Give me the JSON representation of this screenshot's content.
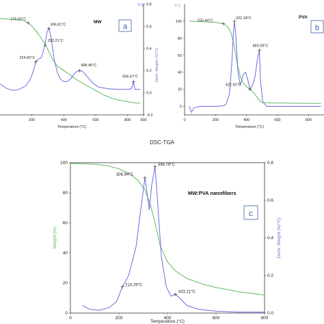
{
  "figure": {
    "middle_title": "DSC-TGA"
  },
  "colors": {
    "weight": "#5cb85c",
    "deriv": "#6a6ae0",
    "axis": "#333333",
    "box": "#3a5fa8"
  },
  "chart_data": [
    {
      "id": "a",
      "type": "line",
      "panel_label": "a",
      "title": "MW",
      "xlabel": "Temperature (°C)",
      "ylabel_right": "Deriv. Weight (%/°C)",
      "right_axis_tag": "Y-2",
      "xlim": [
        0,
        900
      ],
      "ylim_left": [
        0,
        100
      ],
      "ylim_right": [
        -0.2,
        0.8
      ],
      "x_ticks": [
        200,
        400,
        600,
        800,
        900
      ],
      "right_ticks": [
        0.8,
        0.6,
        0.4,
        0.2,
        0.0,
        -0.2
      ],
      "series": [
        {
          "role": "weight",
          "points": [
            [
              0,
              87
            ],
            [
              50,
              86.5
            ],
            [
              100,
              86
            ],
            [
              150,
              85
            ],
            [
              176.65,
              83
            ],
            [
              200,
              80
            ],
            [
              224.82,
              76
            ],
            [
              250,
              71
            ],
            [
              282.21,
              64
            ],
            [
              306.81,
              57
            ],
            [
              330,
              50
            ],
            [
              360,
              44
            ],
            [
              400,
              40
            ],
            [
              450,
              35
            ],
            [
              498.46,
              30
            ],
            [
              550,
              26
            ],
            [
              600,
              22
            ],
            [
              650,
              18
            ],
            [
              700,
              15
            ],
            [
              750,
              13
            ],
            [
              800,
              12
            ],
            [
              836.67,
              11
            ],
            [
              880,
              10.5
            ]
          ]
        },
        {
          "role": "deriv",
          "points": [
            [
              0,
              0.08
            ],
            [
              40,
              0.04
            ],
            [
              80,
              0.02
            ],
            [
              120,
              0.03
            ],
            [
              160,
              0.06
            ],
            [
              190,
              0.12
            ],
            [
              210,
              0.2
            ],
            [
              224.82,
              0.28
            ],
            [
              240,
              0.3
            ],
            [
              260,
              0.32
            ],
            [
              282.21,
              0.43
            ],
            [
              295,
              0.55
            ],
            [
              306.81,
              0.58
            ],
            [
              320,
              0.5
            ],
            [
              340,
              0.3
            ],
            [
              360,
              0.18
            ],
            [
              380,
              0.12
            ],
            [
              400,
              0.1
            ],
            [
              420,
              0.1
            ],
            [
              440,
              0.12
            ],
            [
              460,
              0.16
            ],
            [
              480,
              0.19
            ],
            [
              498.46,
              0.2
            ],
            [
              520,
              0.19
            ],
            [
              550,
              0.14
            ],
            [
              580,
              0.09
            ],
            [
              620,
              0.05
            ],
            [
              680,
              0.035
            ],
            [
              740,
              0.03
            ],
            [
              800,
              0.03
            ],
            [
              825,
              0.035
            ],
            [
              836.67,
              0.1
            ],
            [
              846,
              0.03
            ],
            [
              880,
              0.03
            ]
          ]
        }
      ],
      "annotations": [
        {
          "label": "176.65°C",
          "x": 176.65,
          "series": "weight"
        },
        {
          "label": "224.82°C",
          "x": 224.82,
          "series": "deriv"
        },
        {
          "label": "306.81°C",
          "x": 306.81,
          "series": "deriv"
        },
        {
          "label": "282.21°C",
          "x": 282.21,
          "series": "deriv"
        },
        {
          "label": "498.46°C",
          "x": 498.46,
          "series": "deriv"
        },
        {
          "label": "836.67°C",
          "x": 836.67,
          "series": "deriv"
        }
      ]
    },
    {
      "id": "b",
      "type": "line",
      "panel_label": "b",
      "title": "PVA",
      "xlabel": "Temperature (°C)",
      "left_axis_tag": "Y-1",
      "xlim": [
        0,
        900
      ],
      "ylim_left": [
        -10,
        120
      ],
      "x_ticks": [
        0,
        200,
        400,
        600,
        800
      ],
      "left_ticks": [
        100,
        80,
        60,
        40,
        20,
        0
      ],
      "series": [
        {
          "role": "weight",
          "points": [
            [
              30,
              100
            ],
            [
              100,
              99.5
            ],
            [
              200,
              98.5
            ],
            [
              250.44,
              97
            ],
            [
              280,
              93
            ],
            [
              300,
              86
            ],
            [
              322.18,
              70
            ],
            [
              340,
              50
            ],
            [
              360,
              35
            ],
            [
              380,
              27
            ],
            [
              400,
              23
            ],
            [
              422.62,
              20
            ],
            [
              450,
              15
            ],
            [
              483.09,
              7
            ],
            [
              500,
              4.5
            ],
            [
              550,
              4
            ],
            [
              650,
              3.8
            ],
            [
              800,
              3.5
            ],
            [
              880,
              3.5
            ]
          ]
        },
        {
          "role": "deriv",
          "points": [
            [
              30,
              0
            ],
            [
              45,
              -7
            ],
            [
              60,
              -2
            ],
            [
              100,
              0
            ],
            [
              200,
              0
            ],
            [
              250.44,
              0.5
            ],
            [
              270,
              3
            ],
            [
              290,
              15
            ],
            [
              305,
              50
            ],
            [
              315,
              85
            ],
            [
              322.18,
              100
            ],
            [
              330,
              85
            ],
            [
              345,
              40
            ],
            [
              360,
              25
            ],
            [
              380,
              38
            ],
            [
              395,
              40
            ],
            [
              410,
              30
            ],
            [
              422.62,
              20
            ],
            [
              440,
              25
            ],
            [
              455,
              35
            ],
            [
              470,
              55
            ],
            [
              483.09,
              66
            ],
            [
              490,
              30
            ],
            [
              505,
              5
            ],
            [
              530,
              0
            ],
            [
              650,
              0
            ],
            [
              880,
              0
            ]
          ]
        }
      ],
      "annotations": [
        {
          "label": "250.44°C",
          "x": 250.44,
          "series": "weight"
        },
        {
          "label": "322.18°C",
          "x": 322.18,
          "series": "deriv"
        },
        {
          "label": "422.62°C",
          "x": 422.62,
          "series": "deriv"
        },
        {
          "label": "483.09°C",
          "x": 483.09,
          "series": "deriv"
        }
      ]
    },
    {
      "id": "c",
      "type": "line",
      "panel_label": "c",
      "title": "MW:PVA nanofibers",
      "xlabel": "Temperature (°C)",
      "ylabel_left": "Weight (%)",
      "ylabel_right": "Deriv. Weight (%/°C)",
      "xlim": [
        0,
        800
      ],
      "ylim_left": [
        0,
        100
      ],
      "ylim_right": [
        0,
        0.8
      ],
      "x_ticks": [
        0,
        200,
        400,
        600,
        800
      ],
      "left_ticks": [
        100,
        80,
        60,
        40,
        20,
        0
      ],
      "right_ticks": [
        0.8,
        0.6,
        0.4,
        0.2,
        0.0
      ],
      "series": [
        {
          "role": "weight",
          "points": [
            [
              0,
              99.5
            ],
            [
              100,
              99
            ],
            [
              150,
              98
            ],
            [
              200,
              96
            ],
            [
              250,
              92
            ],
            [
              280,
              88
            ],
            [
              306.94,
              82
            ],
            [
              330,
              72
            ],
            [
              348.78,
              60
            ],
            [
              370,
              45
            ],
            [
              400,
              34
            ],
            [
              433.21,
              28
            ],
            [
              480,
              23
            ],
            [
              550,
              19
            ],
            [
              600,
              17
            ],
            [
              650,
              15.5
            ],
            [
              700,
              14
            ],
            [
              750,
              13
            ],
            [
              800,
              12
            ]
          ]
        },
        {
          "role": "deriv",
          "points": [
            [
              50,
              0.04
            ],
            [
              80,
              0.02
            ],
            [
              120,
              0.015
            ],
            [
              160,
              0.03
            ],
            [
              190,
              0.06
            ],
            [
              214.29,
              0.14
            ],
            [
              240,
              0.2
            ],
            [
              270,
              0.35
            ],
            [
              290,
              0.55
            ],
            [
              306.94,
              0.72
            ],
            [
              318,
              0.62
            ],
            [
              325,
              0.55
            ],
            [
              335,
              0.68
            ],
            [
              348.78,
              0.78
            ],
            [
              360,
              0.58
            ],
            [
              375,
              0.3
            ],
            [
              395,
              0.14
            ],
            [
              415,
              0.09
            ],
            [
              433.21,
              0.1
            ],
            [
              450,
              0.08
            ],
            [
              480,
              0.04
            ],
            [
              530,
              0.02
            ],
            [
              600,
              0.01
            ],
            [
              700,
              0.005
            ],
            [
              800,
              0.005
            ]
          ]
        }
      ],
      "annotations": [
        {
          "label": "306.94°C",
          "x": 306.94,
          "series": "deriv"
        },
        {
          "label": "348.78°C",
          "x": 348.78,
          "series": "deriv"
        },
        {
          "label": "214.29°C",
          "x": 214.29,
          "series": "deriv"
        },
        {
          "label": "433.21°C",
          "x": 433.21,
          "series": "deriv"
        }
      ]
    }
  ]
}
